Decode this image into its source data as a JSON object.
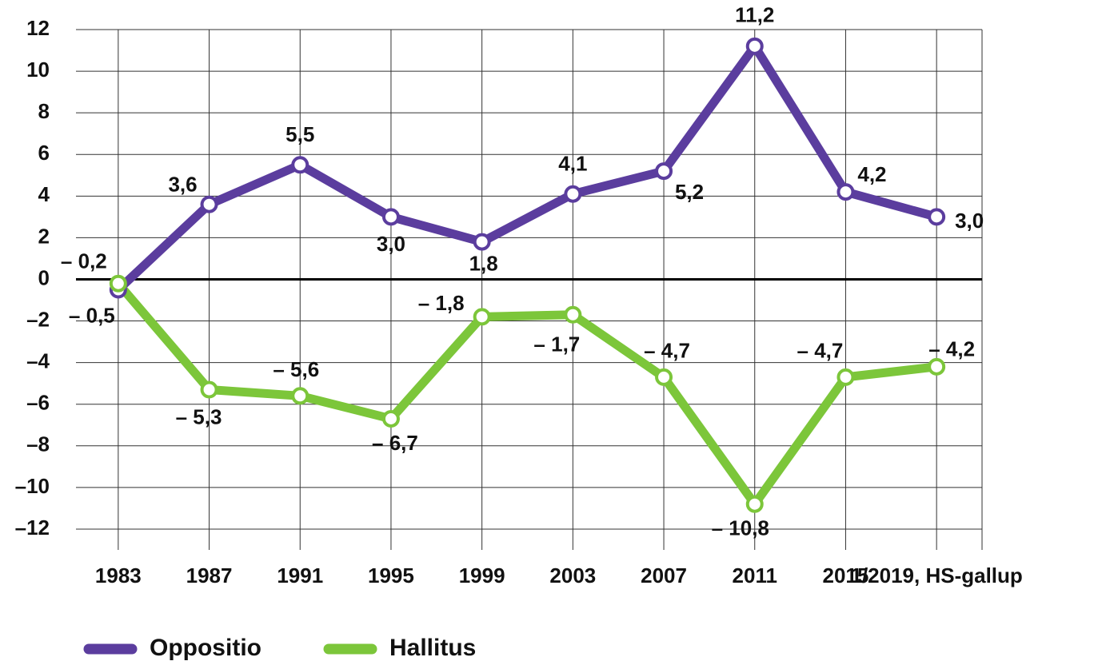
{
  "chart_data": {
    "type": "line",
    "categories": [
      "1983",
      "1987",
      "1991",
      "1995",
      "1999",
      "2003",
      "2007",
      "2011",
      "2015",
      "1/2019, HS-gallup"
    ],
    "series": [
      {
        "name": "Oppositio",
        "color": "#5b3d9e",
        "values": [
          -0.5,
          3.6,
          5.5,
          3.0,
          1.8,
          4.1,
          5.2,
          11.2,
          4.2,
          3.0
        ],
        "value_labels": [
          "– 0,5",
          "3,6",
          "5,5",
          "3,0",
          "1,8",
          "4,1",
          "5,2",
          "11,2",
          "4,2",
          "3,0"
        ]
      },
      {
        "name": "Hallitus",
        "color": "#7cc63a",
        "values": [
          -0.2,
          -5.3,
          -5.6,
          -6.7,
          -1.8,
          -1.7,
          -4.7,
          -10.8,
          -4.7,
          -4.2
        ],
        "value_labels": [
          "– 0,2",
          "– 5,3",
          "– 5,6",
          "– 6,7",
          "– 1,8",
          "– 1,7",
          "– 4,7",
          "– 10,8",
          "– 4,7",
          "– 4,2"
        ]
      }
    ],
    "ylim": [
      -13,
      12
    ],
    "yticks": [
      12,
      10,
      8,
      6,
      4,
      2,
      0,
      {
        "value": -2,
        "label": "–2"
      },
      {
        "value": -4,
        "label": "–4"
      },
      {
        "value": -6,
        "label": "–6"
      },
      {
        "value": -8,
        "label": "–8"
      },
      {
        "value": -10,
        "label": "–10"
      },
      {
        "value": -12,
        "label": "–12"
      }
    ],
    "grid": true
  }
}
